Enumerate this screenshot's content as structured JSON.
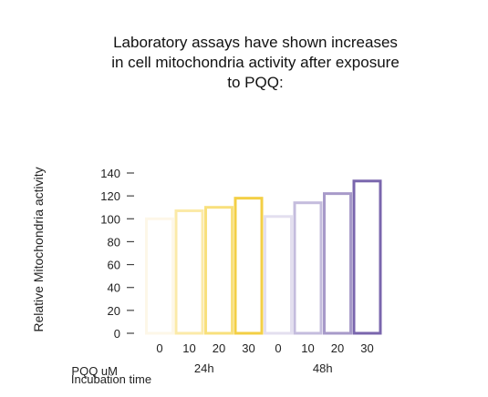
{
  "caption": {
    "lines": [
      "Laboratory assays have shown increases",
      "in cell mitochondria activity after exposure",
      "to PQQ:"
    ]
  },
  "chart_data": {
    "type": "bar",
    "title": "",
    "ylabel": "Relative Mitochondria activity",
    "xlabel": "PQQ uM",
    "xlabel2": "Incubation time",
    "ylim": [
      0,
      140
    ],
    "yticks": [
      0,
      20,
      40,
      60,
      80,
      100,
      120,
      140
    ],
    "categories": [
      "0",
      "10",
      "20",
      "30",
      "0",
      "10",
      "20",
      "30"
    ],
    "values": [
      100,
      107,
      110,
      118,
      102,
      114,
      122,
      133
    ],
    "groups": [
      {
        "label": "24h",
        "start": 0,
        "end": 3
      },
      {
        "label": "48h",
        "start": 4,
        "end": 7
      }
    ],
    "colors": [
      "#fdf7e8",
      "#fbeaa8",
      "#f8e07c",
      "#f3cf45",
      "#e3dfef",
      "#c4bcdd",
      "#a79ac9",
      "#7a66ad"
    ],
    "grid": false,
    "legend": "none"
  }
}
